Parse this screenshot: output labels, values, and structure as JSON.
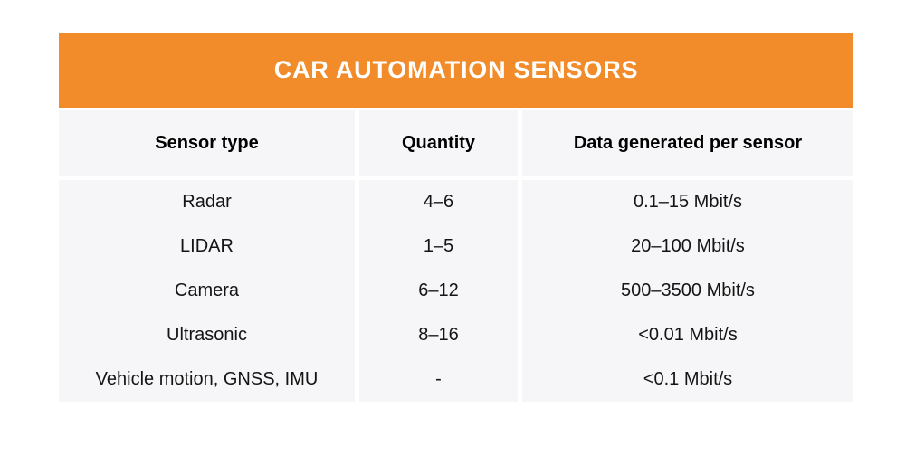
{
  "page": {
    "background_color": "#ffffff"
  },
  "table": {
    "title": "CAR AUTOMATION SENSORS",
    "title_bg_color": "#F28B29",
    "title_text_color": "#FFFFFF",
    "row_bg_color": "#F6F5F7",
    "columns": [
      "Sensor type",
      "Quantity",
      "Data generated per sensor"
    ],
    "rows": [
      {
        "sensor": "Radar",
        "quantity": "4–6",
        "data_rate": "0.1–15 Mbit/s"
      },
      {
        "sensor": "LIDAR",
        "quantity": "1–5",
        "data_rate": "20–100 Mbit/s"
      },
      {
        "sensor": "Camera",
        "quantity": "6–12",
        "data_rate": "500–3500 Mbit/s"
      },
      {
        "sensor": "Ultrasonic",
        "quantity": "8–16",
        "data_rate": "<0.01 Mbit/s"
      },
      {
        "sensor": "Vehicle motion, GNSS, IMU",
        "quantity": "-",
        "data_rate": "<0.1 Mbit/s"
      }
    ]
  },
  "chart_data": {
    "type": "table",
    "title": "CAR AUTOMATION SENSORS",
    "columns": [
      "Sensor type",
      "Quantity",
      "Data generated per sensor"
    ],
    "rows": [
      [
        "Radar",
        "4–6",
        "0.1–15 Mbit/s"
      ],
      [
        "LIDAR",
        "1–5",
        "20–100 Mbit/s"
      ],
      [
        "Camera",
        "6–12",
        "500–3500 Mbit/s"
      ],
      [
        "Ultrasonic",
        "8–16",
        "<0.01 Mbit/s"
      ],
      [
        "Vehicle motion, GNSS, IMU",
        "-",
        "<0.1 Mbit/s"
      ]
    ],
    "layout": {
      "title_band_color": "#F28B29",
      "row_band_color": "#F6F5F7",
      "grid": "off",
      "column_alignment": [
        "center",
        "center",
        "center"
      ]
    }
  }
}
